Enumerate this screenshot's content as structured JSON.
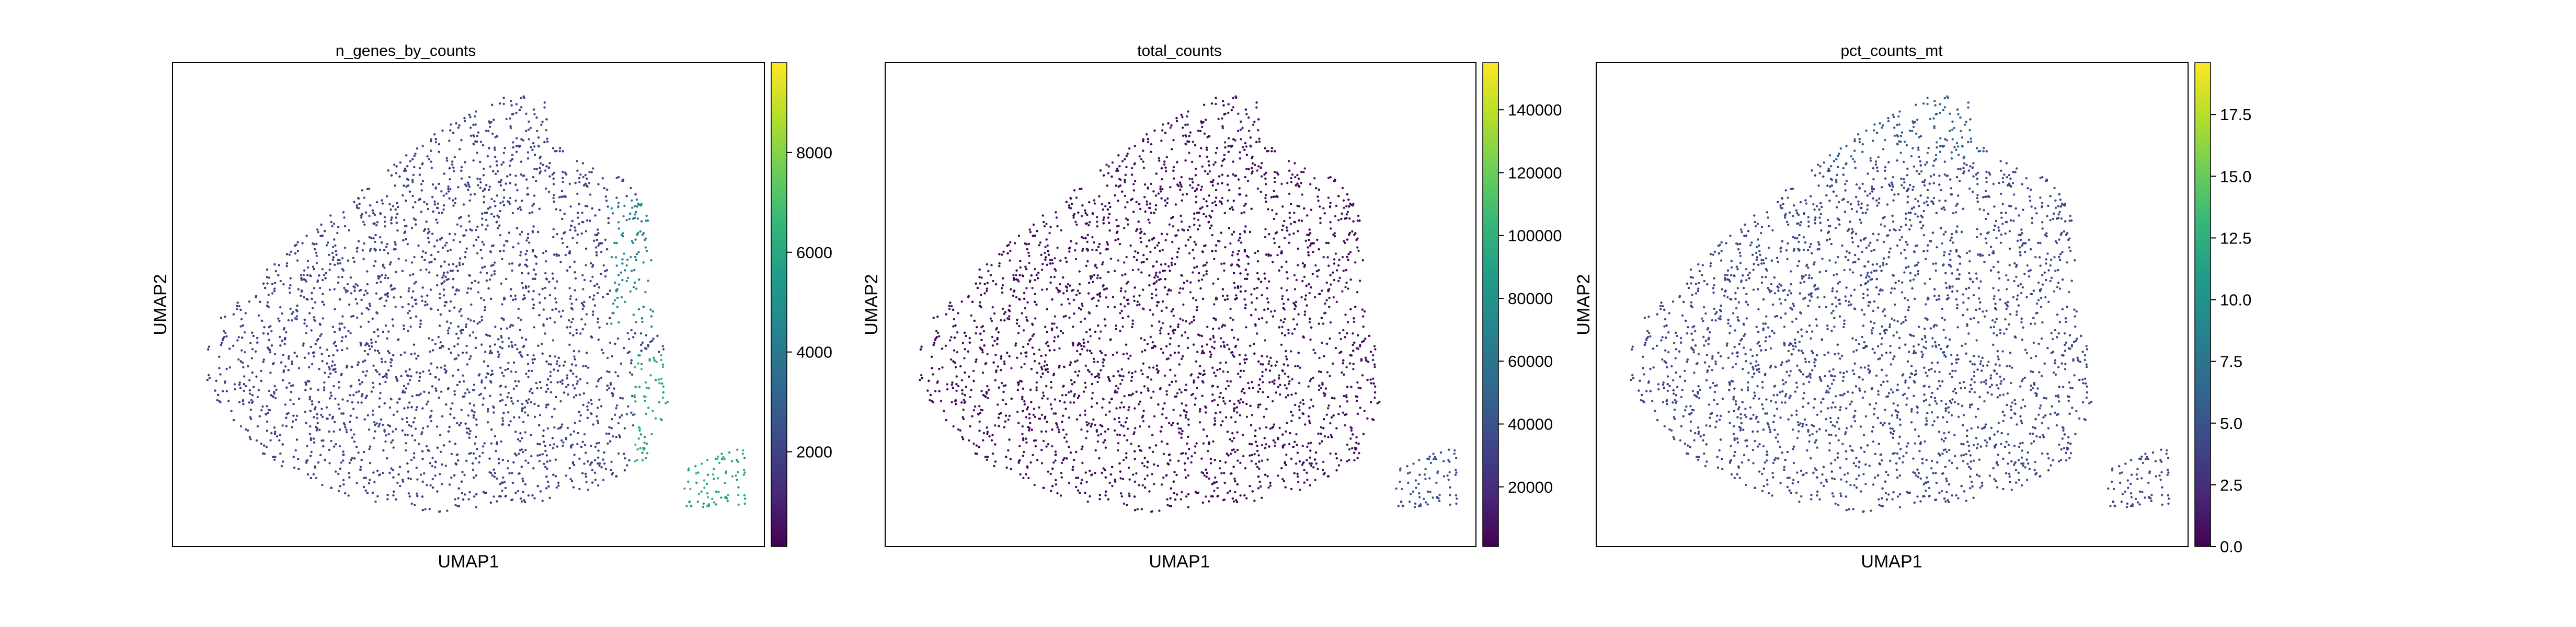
{
  "chart_data": [
    {
      "type": "scatter",
      "title": "n_genes_by_counts",
      "xlabel": "UMAP1",
      "ylabel": "UMAP2",
      "colorbar": {
        "colormap": "viridis",
        "range": [
          100,
          9800
        ],
        "ticks": [
          2000,
          4000,
          6000,
          8000
        ],
        "tick_labels": [
          "2000",
          "4000",
          "6000",
          "8000"
        ]
      },
      "point_color_level": {
        "typical": 0.2,
        "high_region_top_right": 0.45,
        "high_region_bottom_right": 0.6
      }
    },
    {
      "type": "scatter",
      "title": "total_counts",
      "xlabel": "UMAP1",
      "ylabel": "UMAP2",
      "colorbar": {
        "colormap": "viridis",
        "range": [
          1000,
          155000
        ],
        "ticks": [
          20000,
          40000,
          60000,
          80000,
          100000,
          120000,
          140000
        ],
        "tick_labels": [
          "20000",
          "40000",
          "60000",
          "80000",
          "100000",
          "120000",
          "140000"
        ]
      },
      "point_color_level": {
        "typical": 0.03,
        "high_region_bottom_right": 0.25
      }
    },
    {
      "type": "scatter",
      "title": "pct_counts_mt",
      "xlabel": "UMAP1",
      "ylabel": "UMAP2",
      "colorbar": {
        "colormap": "viridis",
        "range": [
          0,
          19.6
        ],
        "ticks": [
          0,
          2.5,
          5,
          7.5,
          10,
          12.5,
          15,
          17.5
        ],
        "tick_labels": [
          "0.0",
          "2.5",
          "5.0",
          "7.5",
          "10.0",
          "12.5",
          "15.0",
          "17.5"
        ]
      },
      "point_color_level": {
        "typical": 0.22,
        "top_region": 0.3
      }
    }
  ],
  "colors": {
    "viridis": [
      "#440154",
      "#482878",
      "#3e4989",
      "#31688e",
      "#26828e",
      "#1f9e89",
      "#35b779",
      "#6ece58",
      "#b5de2b",
      "#fde725"
    ]
  }
}
